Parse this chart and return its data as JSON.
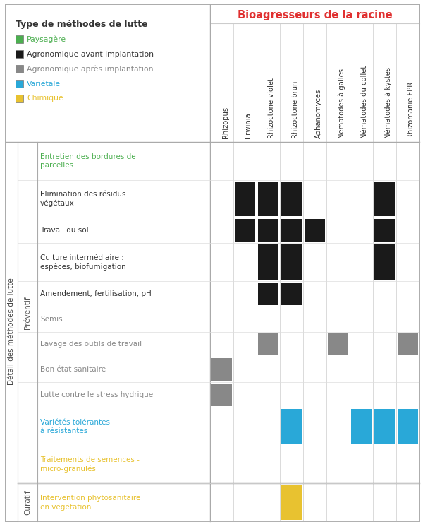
{
  "title_bioagresseurs": "Bioagresseurs de la racine",
  "title_detail": "Détail des méthodes de lutte",
  "legend_title": "Type de méthodes de lutte",
  "legend_items": [
    {
      "label": "Paysagère",
      "color": "#4caf50",
      "text_color": "#4caf50"
    },
    {
      "label": "Agronomique avant implantation",
      "color": "#1a1a1a",
      "text_color": "#333333"
    },
    {
      "label": "Agronomique après implantation",
      "color": "#888888",
      "text_color": "#888888"
    },
    {
      "label": "Variétale",
      "color": "#29a8d8",
      "text_color": "#29a8d8"
    },
    {
      "label": "Chimique",
      "color": "#e8c230",
      "text_color": "#e8c230"
    }
  ],
  "col_headers": [
    "Rhizopus",
    "Erwinia",
    "Rhizoctone violet",
    "Rhizoctone brun",
    "Aphanomyces",
    "Nématodes à galles",
    "Nématodes du collet",
    "Nématodes à kystes",
    "Rhizomanie FPR"
  ],
  "row_groups": [
    {
      "group_label": "Préventif",
      "rows": [
        {
          "label": "Entretien des bordures de\nparcelles",
          "text_color": "#4caf50",
          "cells": [],
          "cell_color": "#4caf50"
        },
        {
          "label": "Elimination des résidus\nvégétaux",
          "text_color": "#333333",
          "cells": [
            1,
            2,
            3,
            7
          ],
          "cell_color": "#1a1a1a"
        },
        {
          "label": "Travail du sol",
          "text_color": "#333333",
          "cells": [
            1,
            2,
            3,
            4,
            7
          ],
          "cell_color": "#1a1a1a"
        },
        {
          "label": "Culture intermédiaire :\nespèces, biofumigation",
          "text_color": "#333333",
          "cells": [
            2,
            3,
            7
          ],
          "cell_color": "#1a1a1a"
        },
        {
          "label": "Amendement, fertilisation, pH",
          "text_color": "#333333",
          "cells": [
            2,
            3
          ],
          "cell_color": "#1a1a1a"
        },
        {
          "label": "Semis",
          "text_color": "#888888",
          "cells": [],
          "cell_color": "#888888"
        },
        {
          "label": "Lavage des outils de travail",
          "text_color": "#888888",
          "cells": [
            2,
            5,
            8
          ],
          "cell_color": "#888888"
        },
        {
          "label": "Bon état sanitaire",
          "text_color": "#888888",
          "cells": [
            0
          ],
          "cell_color": "#888888"
        },
        {
          "label": "Lutte contre le stress hydrique",
          "text_color": "#888888",
          "cells": [
            0
          ],
          "cell_color": "#888888"
        },
        {
          "label": "Variétés tolérantes\nà résistantes",
          "text_color": "#29a8d8",
          "cells": [
            3,
            6,
            7,
            8
          ],
          "cell_color": "#29a8d8"
        },
        {
          "label": "Traitements de semences -\nmicro-granulés",
          "text_color": "#e8c230",
          "cells": [],
          "cell_color": "#e8c230"
        }
      ]
    },
    {
      "group_label": "Curatif",
      "rows": [
        {
          "label": "Intervention phytosanitaire\nen végétation",
          "text_color": "#e8c230",
          "cells": [
            3
          ],
          "cell_color": "#e8c230"
        }
      ]
    }
  ],
  "bg_color": "#ffffff",
  "grid_color": "#cccccc",
  "border_color": "#aaaaaa"
}
